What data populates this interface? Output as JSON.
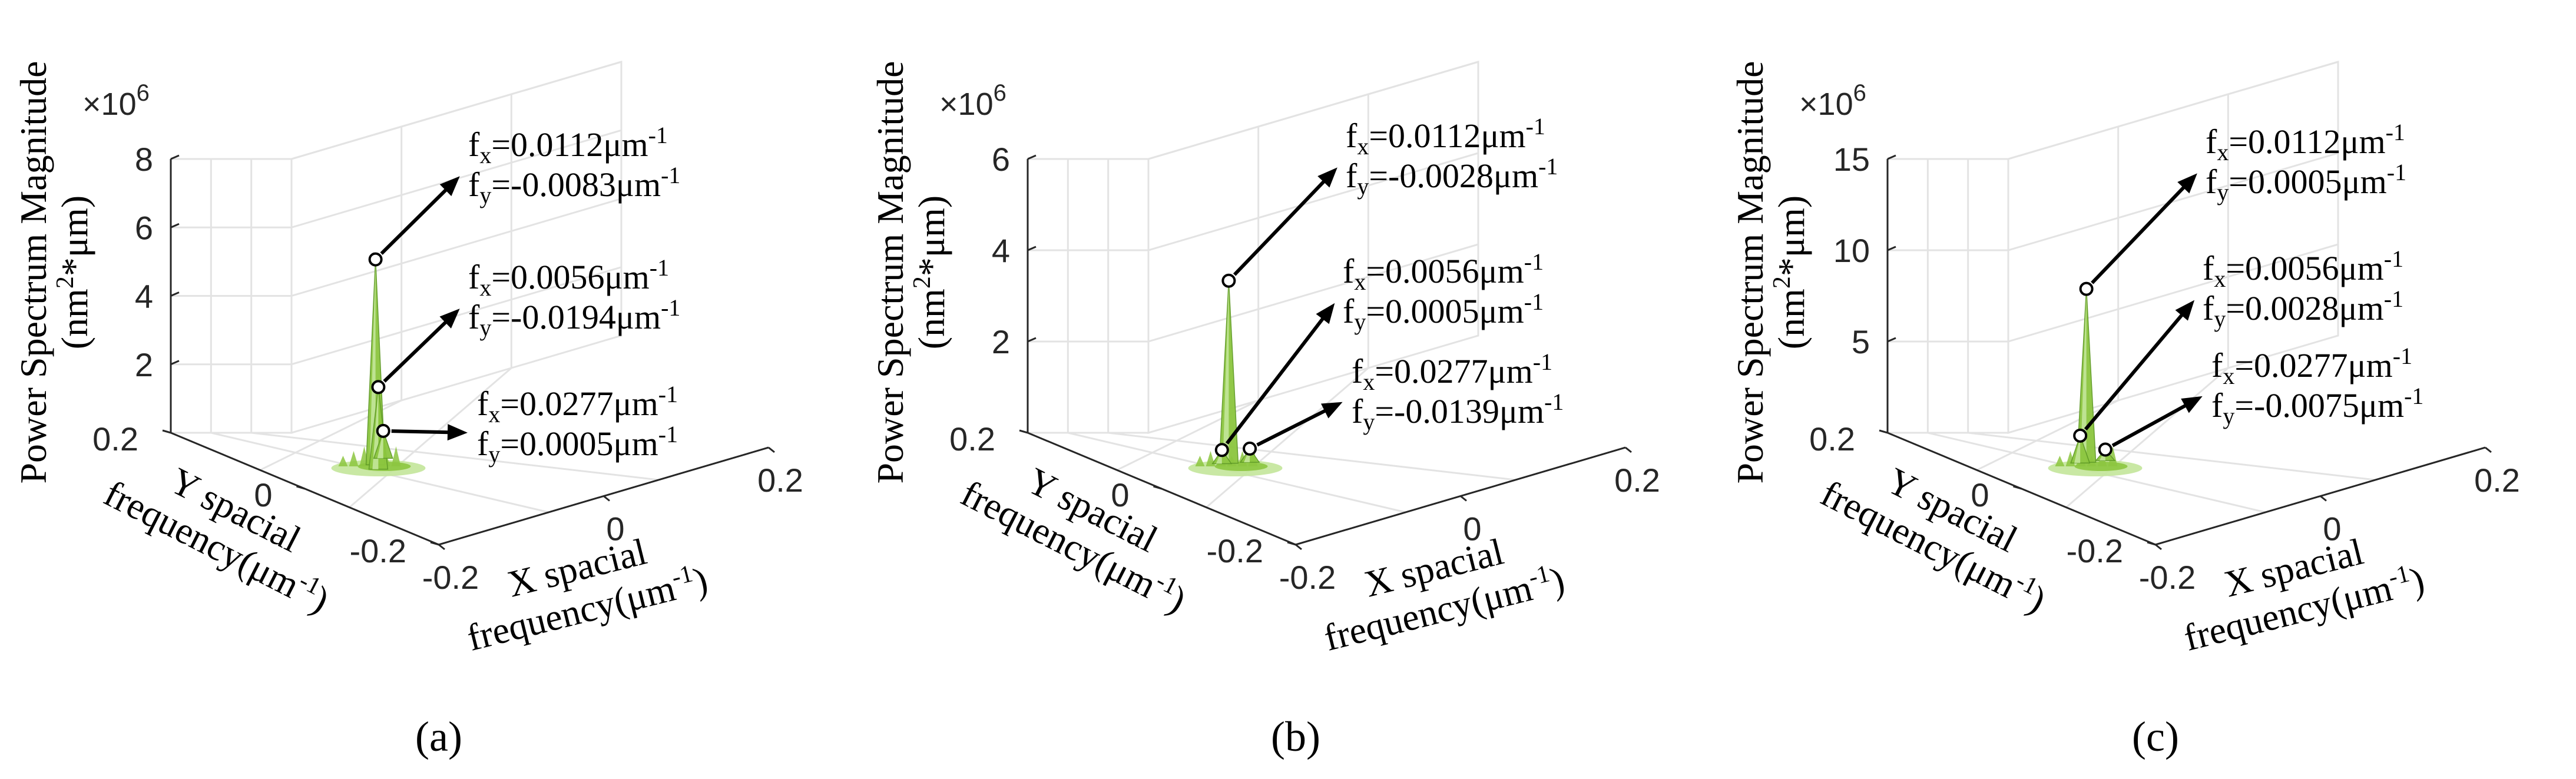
{
  "figure": {
    "panels": [
      {
        "caption": "(a)",
        "chart_data": {
          "type": "surface3d",
          "zlabel_line1": "Power Spectrum Magnitude",
          "zlabel_line2_base": "(nm",
          "zlabel_line2_sup": "2",
          "zlabel_line2_rest": "*μm)",
          "xlabel_line1": "X spacial",
          "xlabel_line2": "frequency(μm",
          "xlabel_line2_sup": "-1",
          "xlabel_line2_end": ")",
          "ylabel_line1": "Y spacial",
          "ylabel_line2": "frequency(μm",
          "ylabel_line2_sup": "-1",
          "ylabel_line2_end": ")",
          "z_multiplier": "×10",
          "z_multiplier_exp": "6",
          "zticks": [
            "2",
            "4",
            "6",
            "8"
          ],
          "zticks_values": [
            2,
            4,
            6,
            8
          ],
          "zlim": [
            0,
            8
          ],
          "xticks": [
            "-0.2",
            "0",
            "0.2"
          ],
          "yticks": [
            "0.2",
            "0",
            "-0.2"
          ],
          "peaks": [
            {
              "fx_label": "f",
              "fx_sub": "x",
              "fx_value": "=0.0112μm",
              "fx_exp": "-1",
              "fy_label": "f",
              "fy_sub": "y",
              "fy_value": "=-0.0083μm",
              "fy_exp": "-1",
              "fx": 0.0112,
              "fy": -0.0083,
              "z": 6.0
            },
            {
              "fx_label": "f",
              "fx_sub": "x",
              "fx_value": "=0.0056μm",
              "fx_exp": "-1",
              "fy_label": "f",
              "fy_sub": "y",
              "fy_value": "=-0.0194μm",
              "fy_exp": "-1",
              "fx": 0.0056,
              "fy": -0.0194,
              "z": 2.4
            },
            {
              "fx_label": "f",
              "fx_sub": "x",
              "fx_value": "=0.0277μm",
              "fx_exp": "-1",
              "fy_label": "f",
              "fy_sub": "y",
              "fy_value": "=0.0005μm",
              "fy_exp": "-1",
              "fx": 0.0277,
              "fy": 0.0005,
              "z": 0.8
            }
          ]
        }
      },
      {
        "caption": "(b)",
        "chart_data": {
          "type": "surface3d",
          "zlabel_line1": "Power Spectrum Magnitude",
          "zlabel_line2_base": "(nm",
          "zlabel_line2_sup": "2",
          "zlabel_line2_rest": "*μm)",
          "xlabel_line1": "X spacial",
          "xlabel_line2": "frequency(μm",
          "xlabel_line2_sup": "-1",
          "xlabel_line2_end": ")",
          "ylabel_line1": "Y spacial",
          "ylabel_line2": "frequency(μm",
          "ylabel_line2_sup": "-1",
          "ylabel_line2_end": ")",
          "z_multiplier": "×10",
          "z_multiplier_exp": "6",
          "zticks": [
            "2",
            "4",
            "6"
          ],
          "zticks_values": [
            2,
            4,
            6
          ],
          "zlim": [
            0,
            6
          ],
          "xticks": [
            "-0.2",
            "0",
            "0.2"
          ],
          "yticks": [
            "0.2",
            "0",
            "-0.2"
          ],
          "peaks": [
            {
              "fx_label": "f",
              "fx_sub": "x",
              "fx_value": "=0.0112μm",
              "fx_exp": "-1",
              "fy_label": "f",
              "fy_sub": "y",
              "fy_value": "=-0.0028μm",
              "fy_exp": "-1",
              "fx": 0.0112,
              "fy": -0.0028,
              "z": 4.0
            },
            {
              "fx_label": "f",
              "fx_sub": "x",
              "fx_value": "=0.0056μm",
              "fx_exp": "-1",
              "fy_label": "f",
              "fy_sub": "y",
              "fy_value": "=0.0005μm",
              "fy_exp": "-1",
              "fx": 0.0056,
              "fy": 0.0005,
              "z": 0.3
            },
            {
              "fx_label": "f",
              "fx_sub": "x",
              "fx_value": "=0.0277μm",
              "fx_exp": "-1",
              "fy_label": "f",
              "fy_sub": "y",
              "fy_value": "=-0.0139μm",
              "fy_exp": "-1",
              "fx": 0.0277,
              "fy": -0.0139,
              "z": 0.3
            }
          ]
        }
      },
      {
        "caption": "(c)",
        "chart_data": {
          "type": "surface3d",
          "zlabel_line1": "Power Spectrum Magnitude",
          "zlabel_line2_base": "(nm",
          "zlabel_line2_sup": "2",
          "zlabel_line2_rest": "*μm)",
          "xlabel_line1": "X spacial",
          "xlabel_line2": "frequency(μm",
          "xlabel_line2_sup": "-1",
          "xlabel_line2_end": ")",
          "ylabel_line1": "Y spacial",
          "ylabel_line2": "frequency(μm",
          "ylabel_line2_sup": "-1",
          "ylabel_line2_end": ")",
          "z_multiplier": "×10",
          "z_multiplier_exp": "6",
          "zticks": [
            "5",
            "10",
            "15"
          ],
          "zticks_values": [
            5,
            10,
            15
          ],
          "zlim": [
            0,
            15
          ],
          "xticks": [
            "-0.2",
            "0",
            "0.2"
          ],
          "yticks": [
            "0.2",
            "0",
            "-0.2"
          ],
          "peaks": [
            {
              "fx_label": "f",
              "fx_sub": "x",
              "fx_value": "=0.0112μm",
              "fx_exp": "-1",
              "fy_label": "f",
              "fy_sub": "y",
              "fy_value": "=0.0005μm",
              "fy_exp": "-1",
              "fx": 0.0112,
              "fy": 0.0005,
              "z": 9.5
            },
            {
              "fx_label": "f",
              "fx_sub": "x",
              "fx_value": "=0.0056μm",
              "fx_exp": "-1",
              "fy_label": "f",
              "fy_sub": "y",
              "fy_value": "=0.0028μm",
              "fy_exp": "-1",
              "fx": 0.0056,
              "fy": 0.0028,
              "z": 1.5
            },
            {
              "fx_label": "f",
              "fx_sub": "x",
              "fx_value": "=0.0277μm",
              "fx_exp": "-1",
              "fy_label": "f",
              "fy_sub": "y",
              "fy_value": "=-0.0075μm",
              "fy_exp": "-1",
              "fx": 0.0277,
              "fy": -0.0075,
              "z": 0.6
            }
          ]
        }
      }
    ],
    "colors": {
      "surface": "#8cc63f",
      "surface_light": "#c3e59a",
      "surface_dark": "#5f9a27",
      "grid": "#e3e3e3",
      "axis": "#262626"
    }
  }
}
